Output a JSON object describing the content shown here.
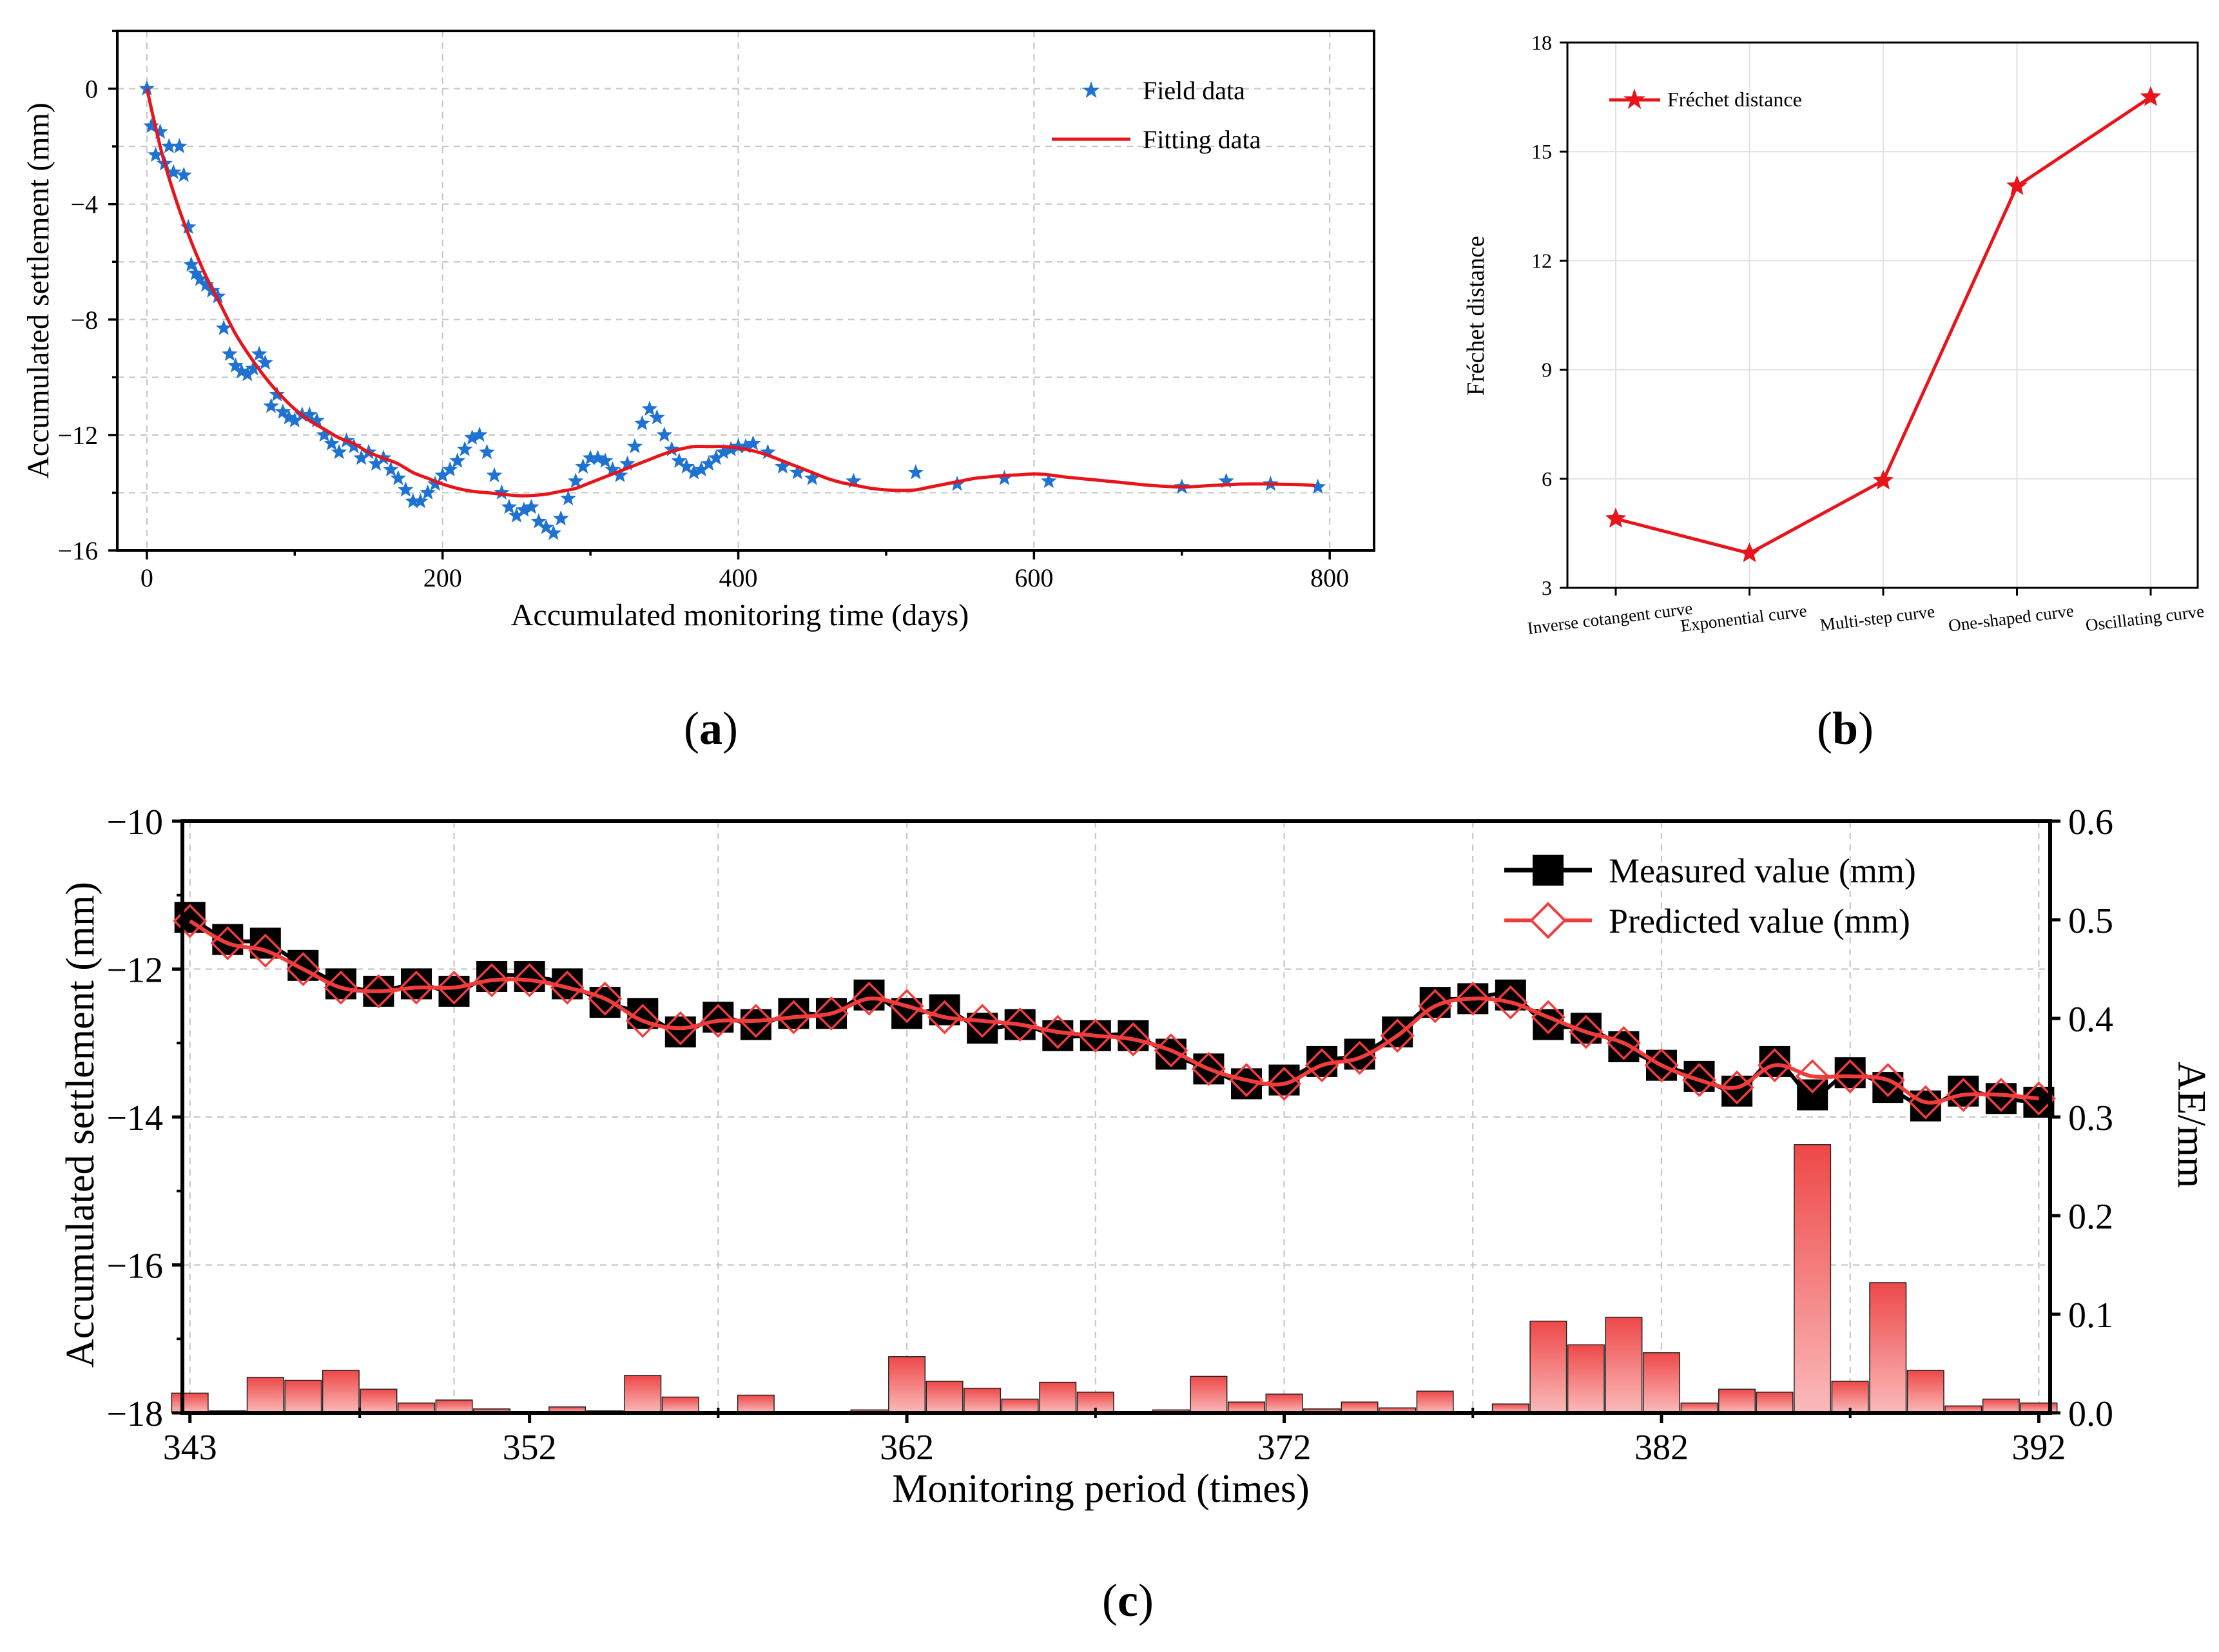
{
  "panel_labels": {
    "a": "(a)",
    "b": "(b)",
    "c": "(c)"
  },
  "legend_a": {
    "field": "Field data",
    "fitting": "Fitting data"
  },
  "legend_b": {
    "frechet": "Fréchet distance"
  },
  "legend_c": {
    "measured": "Measured value (mm)",
    "predicted": "Predicted value (mm)"
  },
  "colors": {
    "field": "#1e73d2",
    "fit": "#e8141c",
    "measured": "#000000",
    "predicted": "#f23c3c",
    "bar_top": "#ee4848",
    "bar_bottom": "#fbbaba"
  },
  "chart_data": [
    {
      "id": "a",
      "type": "scatter",
      "title": "",
      "xlabel": "Accumulated monitoring time (days)",
      "ylabel": "Accumulated settlement (mm)",
      "xlim": [
        -20,
        830
      ],
      "ylim": [
        -16,
        2
      ],
      "xticks": [
        0,
        200,
        400,
        600,
        800
      ],
      "yticks": [
        0,
        -4,
        -8,
        -12,
        -16
      ],
      "xtick_labels": [
        "0",
        "200",
        "400",
        "600",
        "800"
      ],
      "ytick_labels": [
        "0",
        "−4",
        "−8",
        "−12",
        "−16"
      ],
      "series": [
        {
          "name": "Field data",
          "type": "scatter",
          "x": [
            0,
            3,
            6,
            9,
            12,
            15,
            18,
            22,
            25,
            28,
            30,
            33,
            36,
            40,
            44,
            48,
            52,
            56,
            60,
            64,
            68,
            72,
            76,
            80,
            84,
            88,
            92,
            96,
            100,
            105,
            110,
            115,
            120,
            125,
            130,
            135,
            140,
            145,
            150,
            155,
            160,
            165,
            170,
            175,
            180,
            185,
            190,
            195,
            200,
            205,
            210,
            215,
            220,
            225,
            230,
            235,
            240,
            245,
            250,
            255,
            260,
            265,
            270,
            275,
            280,
            285,
            290,
            295,
            300,
            305,
            310,
            315,
            320,
            325,
            330,
            335,
            340,
            345,
            350,
            355,
            360,
            365,
            370,
            375,
            380,
            385,
            390,
            395,
            400,
            405,
            410,
            420,
            430,
            440,
            450,
            478,
            520,
            548,
            580,
            610,
            700,
            730,
            760,
            792
          ],
          "y": [
            0,
            -1.3,
            -2.3,
            -1.5,
            -2.6,
            -2.0,
            -2.9,
            -2.0,
            -3.0,
            -4.8,
            -6.1,
            -6.4,
            -6.6,
            -6.8,
            -7.0,
            -7.2,
            -8.3,
            -9.2,
            -9.6,
            -9.8,
            -9.9,
            -9.7,
            -9.2,
            -9.5,
            -11.0,
            -10.6,
            -11.2,
            -11.4,
            -11.5,
            -11.3,
            -11.3,
            -11.5,
            -12.0,
            -12.3,
            -12.6,
            -12.2,
            -12.4,
            -12.8,
            -12.6,
            -13.0,
            -12.8,
            -13.2,
            -13.5,
            -13.9,
            -14.3,
            -14.3,
            -14.0,
            -13.7,
            -13.4,
            -13.2,
            -12.9,
            -12.5,
            -12.1,
            -12.0,
            -12.6,
            -13.4,
            -14.0,
            -14.5,
            -14.8,
            -14.6,
            -14.5,
            -15.0,
            -15.2,
            -15.4,
            -14.9,
            -14.2,
            -13.6,
            -13.1,
            -12.8,
            -12.8,
            -12.9,
            -13.2,
            -13.4,
            -13.0,
            -12.4,
            -11.6,
            -11.1,
            -11.4,
            -12.0,
            -12.5,
            -12.9,
            -13.1,
            -13.3,
            -13.2,
            -13.0,
            -12.8,
            -12.6,
            -12.5,
            -12.4,
            -12.4,
            -12.3,
            -12.6,
            -13.1,
            -13.3,
            -13.5,
            -13.6,
            -13.3,
            -13.7,
            -13.5,
            -13.6,
            -13.8,
            -13.6,
            -13.7,
            -13.8
          ]
        },
        {
          "name": "Fitting data",
          "type": "line",
          "x": [
            0,
            10,
            20,
            30,
            40,
            50,
            60,
            70,
            80,
            90,
            100,
            110,
            120,
            130,
            140,
            150,
            160,
            170,
            180,
            190,
            200,
            210,
            220,
            230,
            240,
            250,
            260,
            270,
            280,
            290,
            300,
            310,
            320,
            330,
            340,
            350,
            360,
            370,
            380,
            390,
            400,
            410,
            420,
            430,
            440,
            450,
            460,
            470,
            480,
            490,
            500,
            510,
            520,
            530,
            540,
            550,
            560,
            570,
            580,
            590,
            600,
            610,
            620,
            640,
            660,
            680,
            700,
            720,
            740,
            760,
            780,
            790
          ],
          "y": [
            0,
            -2.2,
            -3.9,
            -5.3,
            -6.5,
            -7.5,
            -8.5,
            -9.3,
            -10.0,
            -10.6,
            -11.1,
            -11.5,
            -11.8,
            -12.1,
            -12.3,
            -12.6,
            -12.8,
            -13.0,
            -13.3,
            -13.5,
            -13.7,
            -13.85,
            -13.95,
            -14.0,
            -14.05,
            -14.1,
            -14.1,
            -14.05,
            -13.95,
            -13.85,
            -13.65,
            -13.45,
            -13.25,
            -13.05,
            -12.85,
            -12.65,
            -12.5,
            -12.4,
            -12.4,
            -12.4,
            -12.45,
            -12.55,
            -12.7,
            -12.9,
            -13.1,
            -13.3,
            -13.5,
            -13.65,
            -13.75,
            -13.85,
            -13.9,
            -13.92,
            -13.9,
            -13.8,
            -13.7,
            -13.6,
            -13.5,
            -13.45,
            -13.4,
            -13.38,
            -13.35,
            -13.38,
            -13.45,
            -13.55,
            -13.65,
            -13.75,
            -13.8,
            -13.75,
            -13.7,
            -13.7,
            -13.72,
            -13.75
          ]
        }
      ],
      "legend": "top-right",
      "grid": true
    },
    {
      "id": "b",
      "type": "line",
      "title": "",
      "xlabel": "",
      "ylabel": "Fréchet distance",
      "categories": [
        "Inverse cotangent curve",
        "Exponential curve",
        "Multi-step curve",
        "One-shaped curve",
        "Oscillating curve"
      ],
      "values": [
        4.9,
        3.95,
        5.95,
        14.05,
        16.5
      ],
      "ylim": [
        3,
        18
      ],
      "yticks": [
        3,
        6,
        9,
        12,
        15,
        18
      ],
      "ytick_labels": [
        "3",
        "6",
        "9",
        "12",
        "15",
        "18"
      ],
      "series": [
        {
          "name": "Fréchet distance",
          "values": [
            4.9,
            3.95,
            5.95,
            14.05,
            16.5
          ]
        }
      ],
      "legend": "top-left",
      "grid": true
    },
    {
      "id": "c",
      "type": "line",
      "title": "",
      "xlabel": "Monitoring period (times)",
      "ylabel": "Accumulated settlement (mm)",
      "y2label": "AE/mm",
      "xlim": [
        342.8,
        392.3
      ],
      "ylim": [
        -18,
        -10
      ],
      "y2lim": [
        0,
        0.6
      ],
      "xticks": [
        343,
        352,
        362,
        372,
        382,
        392
      ],
      "xtick_labels": [
        "343",
        "352",
        "362",
        "372",
        "382",
        "392"
      ],
      "yticks": [
        -10,
        -12,
        -14,
        -16,
        -18
      ],
      "ytick_labels": [
        "−10",
        "−12",
        "−14",
        "−16",
        "−18"
      ],
      "y2ticks": [
        0.6,
        0.5,
        0.4,
        0.3,
        0.2,
        0.1,
        0.0
      ],
      "y2tick_labels": [
        "0.6",
        "0.5",
        "0.4",
        "0.3",
        "0.2",
        "0.1",
        "0.0"
      ],
      "x": [
        343,
        344,
        345,
        346,
        347,
        348,
        349,
        350,
        351,
        352,
        353,
        354,
        355,
        356,
        357,
        358,
        359,
        360,
        361,
        362,
        363,
        364,
        365,
        366,
        367,
        368,
        369,
        370,
        371,
        372,
        373,
        374,
        375,
        376,
        377,
        378,
        379,
        380,
        381,
        382,
        383,
        384,
        385,
        386,
        387,
        388,
        389,
        390,
        391,
        392
      ],
      "series": [
        {
          "name": "Measured value (mm)",
          "axis": "left",
          "values": [
            -11.3,
            -11.6,
            -11.65,
            -11.95,
            -12.2,
            -12.3,
            -12.2,
            -12.3,
            -12.1,
            -12.1,
            -12.2,
            -12.45,
            -12.6,
            -12.85,
            -12.65,
            -12.75,
            -12.6,
            -12.6,
            -12.35,
            -12.6,
            -12.55,
            -12.8,
            -12.75,
            -12.9,
            -12.9,
            -12.9,
            -13.15,
            -13.35,
            -13.55,
            -13.5,
            -13.25,
            -13.15,
            -12.85,
            -12.45,
            -12.4,
            -12.35,
            -12.75,
            -12.8,
            -13.05,
            -13.3,
            -13.45,
            -13.65,
            -13.25,
            -13.7,
            -13.4,
            -13.6,
            -13.85,
            -13.65,
            -13.75,
            -13.8
          ]
        },
        {
          "name": "Predicted value (mm)",
          "axis": "left",
          "values": [
            -11.35,
            -11.65,
            -11.75,
            -12.0,
            -12.25,
            -12.3,
            -12.25,
            -12.25,
            -12.15,
            -12.15,
            -12.25,
            -12.4,
            -12.7,
            -12.8,
            -12.7,
            -12.7,
            -12.65,
            -12.6,
            -12.4,
            -12.5,
            -12.65,
            -12.7,
            -12.75,
            -12.85,
            -12.9,
            -12.95,
            -13.1,
            -13.35,
            -13.5,
            -13.55,
            -13.3,
            -13.2,
            -12.9,
            -12.5,
            -12.4,
            -12.45,
            -12.65,
            -12.85,
            -13.0,
            -13.3,
            -13.5,
            -13.6,
            -13.3,
            -13.45,
            -13.45,
            -13.5,
            -13.8,
            -13.7,
            -13.7,
            -13.75
          ]
        },
        {
          "name": "AE/mm",
          "axis": "right",
          "type": "bar",
          "values": [
            0.02,
            0.002,
            0.036,
            0.033,
            0.043,
            0.024,
            0.01,
            0.013,
            0.004,
            0.001,
            0.006,
            0.002,
            0.038,
            0.016,
            0.001,
            0.018,
            0.001,
            0.001,
            0.003,
            0.057,
            0.032,
            0.025,
            0.014,
            0.031,
            0.021,
            0.0,
            0.003,
            0.037,
            0.011,
            0.019,
            0.004,
            0.011,
            0.005,
            0.022,
            0.001,
            0.009,
            0.093,
            0.069,
            0.097,
            0.061,
            0.01,
            0.024,
            0.021,
            0.272,
            0.032,
            0.132,
            0.043,
            0.007,
            0.014,
            0.01
          ]
        }
      ],
      "legend": "top-right",
      "grid": true
    }
  ]
}
